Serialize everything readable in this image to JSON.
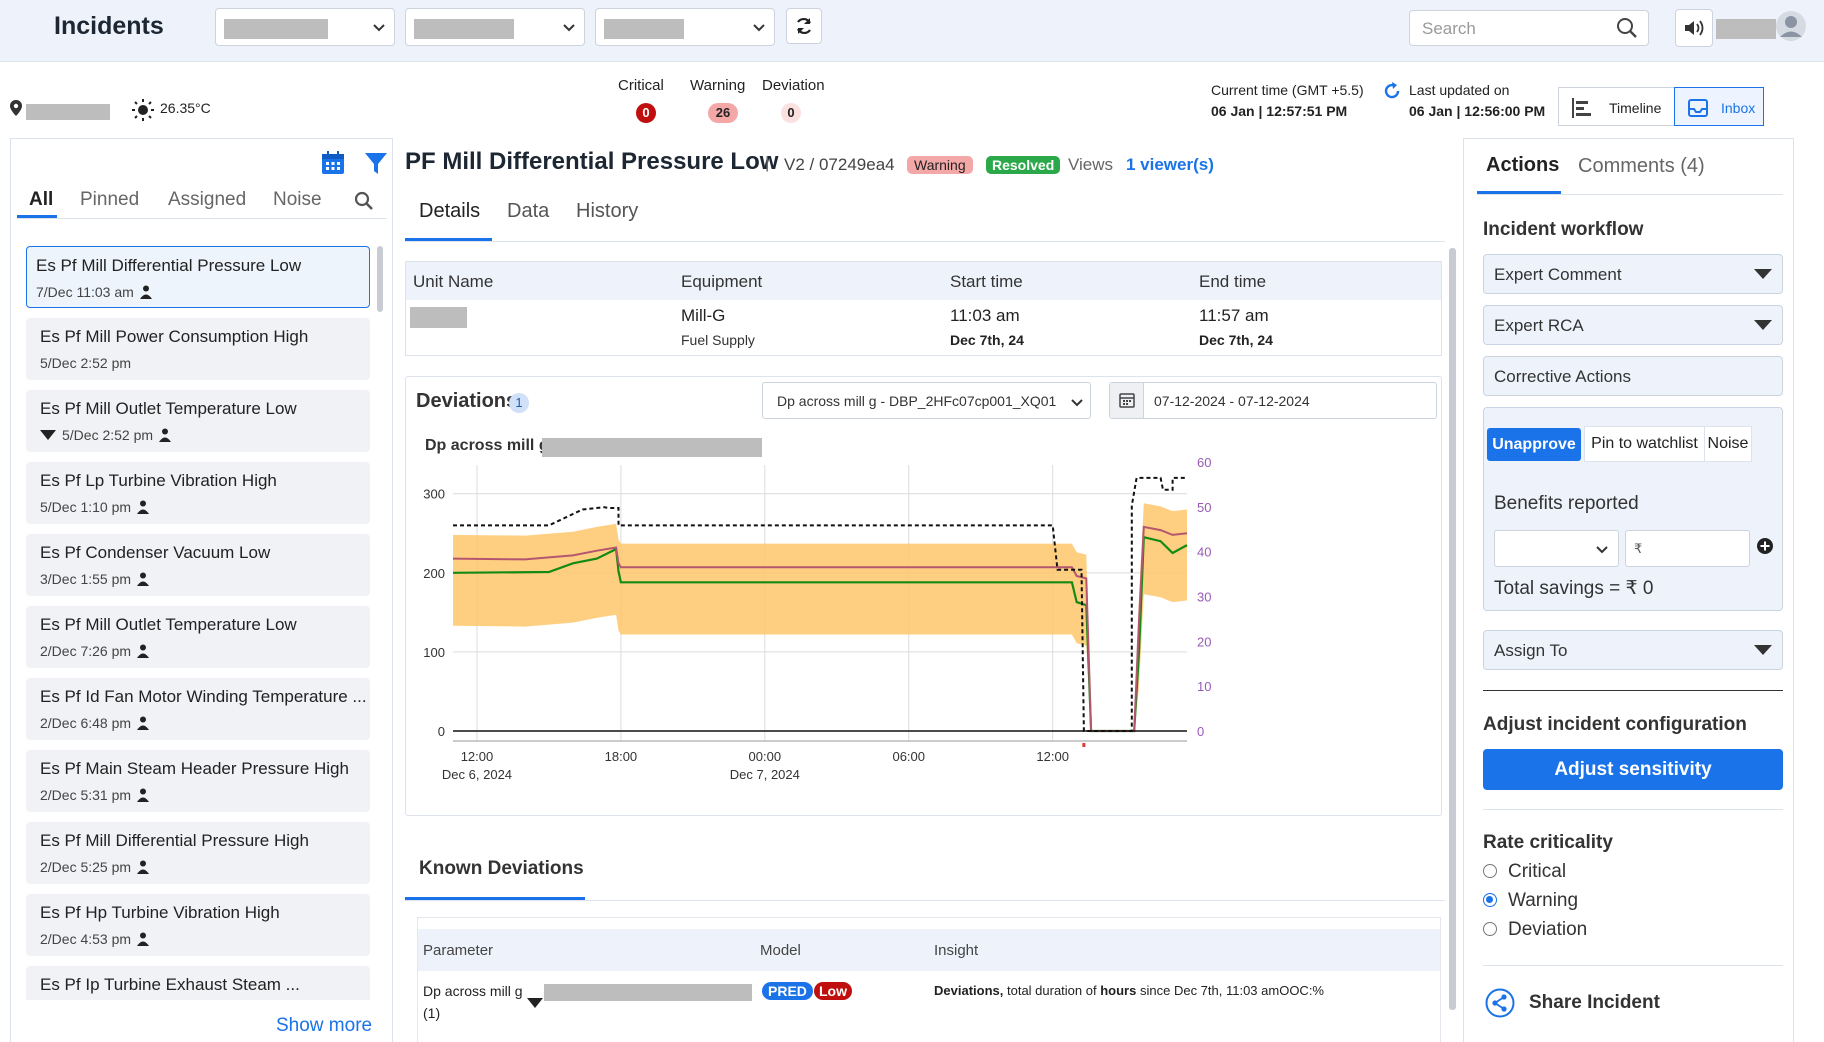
{
  "app": {
    "title": "Incidents"
  },
  "header": {
    "search_placeholder": "Search"
  },
  "status": {
    "temperature": "26.35°C",
    "critical_label": "Critical",
    "critical_count": "0",
    "warning_label": "Warning",
    "warning_count": "26",
    "deviation_label": "Deviation",
    "deviation_count": "0",
    "current_time_label": "Current time (GMT +5.5)",
    "current_time_value": "06 Jan | 12:57:51 PM",
    "last_updated_label": "Last updated on",
    "last_updated_value": "06 Jan | 12:56:00 PM",
    "timeline_label": "Timeline",
    "inbox_label": "Inbox"
  },
  "left": {
    "tabs": [
      "All",
      "Pinned",
      "Assigned",
      "Noise"
    ],
    "show_more": "Show more",
    "incidents": [
      {
        "title": "Es Pf Mill Differential Pressure Low",
        "date": "7/Dec 11:03 am"
      },
      {
        "title": "Es Pf Mill Power Consumption High",
        "date": "5/Dec 2:52 pm"
      },
      {
        "title": "Es Pf Mill Outlet Temperature Low",
        "date": "5/Dec 2:52 pm"
      },
      {
        "title": "Es Pf Lp Turbine Vibration High",
        "date": "5/Dec 1:10 pm"
      },
      {
        "title": "Es Pf Condenser Vacuum Low",
        "date": "3/Dec 1:55 pm"
      },
      {
        "title": "Es Pf Mill Outlet Temperature Low",
        "date": "2/Dec 7:26 pm"
      },
      {
        "title": "Es Pf Id Fan Motor Winding Temperature ...",
        "date": "2/Dec 6:48 pm"
      },
      {
        "title": "Es Pf Main Steam Header Pressure High",
        "date": "2/Dec 5:31 pm"
      },
      {
        "title": "Es Pf Mill Differential Pressure High",
        "date": "2/Dec 5:25 pm"
      },
      {
        "title": "Es Pf Hp Turbine Vibration High",
        "date": "2/Dec 4:53 pm"
      },
      {
        "title": "Es Pf Ip Turbine Exhaust Steam ...",
        "date": ""
      }
    ]
  },
  "incident": {
    "title": "PF Mill Differential Pressure Low",
    "id": "V2 / 07249ea4",
    "severity": "Warning",
    "state": "Resolved",
    "views_label": "Views",
    "viewers": "1 viewer(s)",
    "tabs": [
      "Details",
      "Data",
      "History"
    ]
  },
  "details_table": {
    "headers": [
      "Unit Name",
      "Equipment",
      "Start time",
      "End time"
    ],
    "equipment": "Mill-G",
    "equipment_sub": "Fuel Supply",
    "start_time": "11:03 am",
    "start_date": "Dec 7th, 24",
    "end_time": "11:57 am",
    "end_date": "Dec 7th, 24"
  },
  "deviations": {
    "title": "Deviations",
    "count": "1",
    "parameter_select": "Dp across mill g - DBP_2HFc07cp001_XQ01",
    "date_range": "07-12-2024 - 07-12-2024"
  },
  "chart_data": {
    "type": "line",
    "title": "Dp across mill g",
    "x_ticks": [
      "12:00",
      "18:00",
      "00:00",
      "06:00",
      "12:00"
    ],
    "x_date_labels": [
      "Dec 6, 2024",
      "",
      "Dec 7, 2024",
      "",
      ""
    ],
    "y_left_ticks": [
      0,
      100,
      200,
      300
    ],
    "y_right_ticks": [
      0,
      10,
      20,
      30,
      40,
      50,
      60
    ],
    "ylim_left": [
      0,
      330
    ],
    "ylim_right": [
      0,
      60
    ],
    "x_hours": [
      0,
      6,
      12,
      18,
      24
    ],
    "x_range_hours": [
      -1,
      29.6
    ],
    "colors": {
      "band": "#ffc76b",
      "predicted": "#b5566f",
      "actual": "#138a13",
      "limit": "#111111",
      "right_axis": "#9a5ab8"
    },
    "series": [
      {
        "values": [
          [
            -1,
            200
          ],
          [
            3,
            201
          ],
          [
            4,
            212
          ],
          [
            5,
            218
          ],
          [
            5.8,
            230
          ],
          [
            5.9,
            202
          ],
          [
            6,
            188
          ],
          [
            24,
            188
          ],
          [
            24.8,
            188
          ],
          [
            25,
            163
          ],
          [
            25.4,
            159
          ],
          [
            25.6,
            0
          ],
          [
            27.4,
            0
          ],
          [
            27.6,
            100
          ],
          [
            27.8,
            245
          ],
          [
            28.5,
            240
          ],
          [
            29,
            225
          ],
          [
            29.6,
            235
          ]
        ]
      },
      {
        "values": [
          [
            -1,
            218
          ],
          [
            2,
            217
          ],
          [
            4,
            222
          ],
          [
            5,
            228
          ],
          [
            5.8,
            232
          ],
          [
            5.9,
            212
          ],
          [
            6,
            207
          ],
          [
            24,
            207
          ],
          [
            24.8,
            207
          ],
          [
            25,
            196
          ],
          [
            25.4,
            193
          ],
          [
            25.6,
            0
          ],
          [
            27.4,
            0
          ],
          [
            27.6,
            140
          ],
          [
            27.8,
            258
          ],
          [
            28.5,
            254
          ],
          [
            29,
            248
          ],
          [
            29.6,
            250
          ]
        ]
      },
      {
        "values": [
          [
            -1,
            260
          ],
          [
            3,
            260
          ],
          [
            4.4,
            280
          ],
          [
            5.3,
            283
          ],
          [
            5.5,
            282
          ],
          [
            5.9,
            282
          ],
          [
            5.9,
            260
          ],
          [
            10,
            260
          ],
          [
            24,
            260
          ],
          [
            24,
            260
          ],
          [
            24.2,
            204
          ],
          [
            25.2,
            204
          ],
          [
            25.3,
            0
          ],
          [
            27.3,
            0
          ],
          [
            27.3,
            285
          ],
          [
            27.5,
            320
          ],
          [
            28.5,
            320
          ],
          [
            28.6,
            305
          ],
          [
            29,
            305
          ],
          [
            29,
            320
          ],
          [
            29.6,
            320
          ]
        ]
      }
    ]
  },
  "known_deviations": {
    "title": "Known Deviations",
    "headers": [
      "Parameter",
      "Model",
      "Insight"
    ],
    "row": {
      "parameter": "Dp across mill g",
      "parameter_count": "(1)",
      "model_tag": "PRED",
      "level_tag": "Low",
      "insight_bold": "Deviations,",
      "insight_text": "total duration of",
      "insight_bold2": "hours",
      "insight_text2": "since Dec 7th, 11:03 amOOC:%"
    }
  },
  "right": {
    "tabs": [
      "Actions",
      "Comments (4)"
    ],
    "workflow_title": "Incident workflow",
    "expert_comment": "Expert Comment",
    "expert_rca": "Expert RCA",
    "corrective_actions": "Corrective Actions",
    "unapprove": "Unapprove",
    "pin": "Pin to watchlist",
    "noise": "Noise",
    "benefits_label": "Benefits reported",
    "currency": "₹",
    "total_savings": "Total savings = ₹ 0",
    "assign_to": "Assign To",
    "adjust_title": "Adjust incident configuration",
    "adjust_button": "Adjust sensitivity",
    "rate_title": "Rate criticality",
    "rate_options": [
      "Critical",
      "Warning",
      "Deviation"
    ],
    "rate_selected": "Warning",
    "share": "Share Incident"
  }
}
